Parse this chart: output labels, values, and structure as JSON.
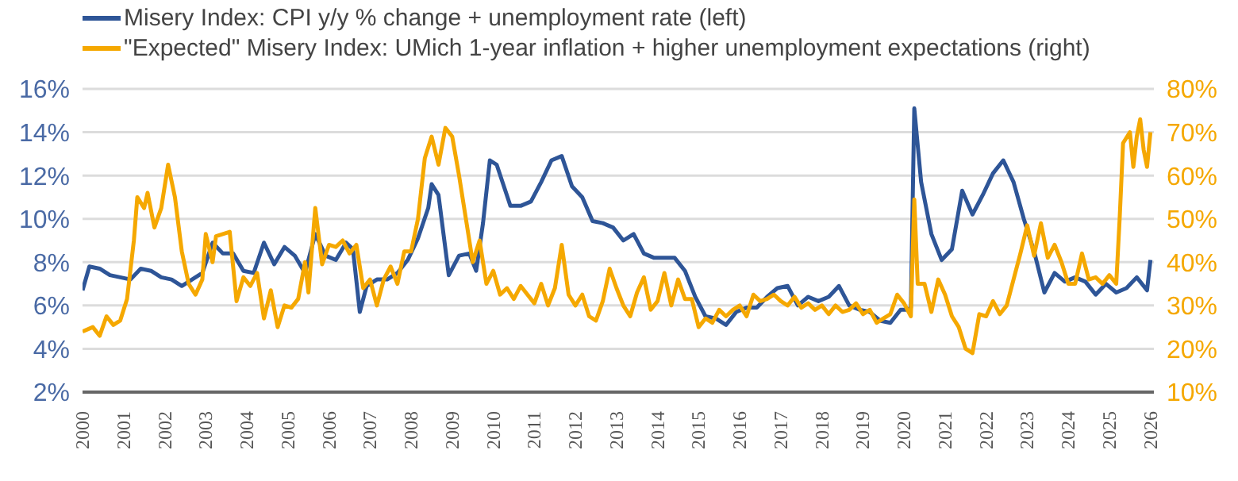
{
  "chart_data": {
    "type": "line",
    "xlim": [
      "2000",
      "2026-02"
    ],
    "xticks": [
      "2000",
      "2001",
      "2002",
      "2003",
      "2004",
      "2005",
      "2006",
      "2007",
      "2008",
      "2009",
      "2010",
      "2011",
      "2012",
      "2013",
      "2014",
      "2015",
      "2016",
      "2017",
      "2018",
      "2019",
      "2020",
      "2021",
      "2022",
      "2023",
      "2024",
      "2025",
      "2026"
    ],
    "ylim": [
      2,
      16
    ],
    "yticks": [
      {
        "value": 2,
        "label": "2%"
      },
      {
        "value": 4,
        "label": "4%"
      },
      {
        "value": 6,
        "label": "6%"
      },
      {
        "value": 8,
        "label": "8%"
      },
      {
        "value": 10,
        "label": "10%"
      },
      {
        "value": 12,
        "label": "12%"
      },
      {
        "value": 14,
        "label": "14%"
      },
      {
        "value": 16,
        "label": "16%"
      }
    ],
    "y2lim": [
      10,
      80
    ],
    "y2ticks": [
      {
        "value": 10,
        "label": "10%"
      },
      {
        "value": 20,
        "label": "20%"
      },
      {
        "value": 30,
        "label": "30%"
      },
      {
        "value": 40,
        "label": "40%"
      },
      {
        "value": 50,
        "label": "50%"
      },
      {
        "value": 60,
        "label": "60%"
      },
      {
        "value": 70,
        "label": "70%"
      },
      {
        "value": 80,
        "label": "80%"
      }
    ],
    "grid": "y",
    "legend": "top left",
    "line_style": "solid",
    "marker": "none",
    "series": [
      {
        "name": "Misery Index: CPI y/y % change + unemployment rate (left)",
        "color": "#2e5597",
        "x": [
          "2000-01",
          "2000-03",
          "2000-06",
          "2000-09",
          "2000-12",
          "2001-03",
          "2001-06",
          "2001-09",
          "2001-12",
          "2002-03",
          "2002-06",
          "2002-09",
          "2002-12",
          "2003-03",
          "2003-06",
          "2003-09",
          "2003-12",
          "2004-03",
          "2004-06",
          "2004-09",
          "2004-12",
          "2005-03",
          "2005-06",
          "2005-09",
          "2005-12",
          "2006-03",
          "2006-06",
          "2006-08",
          "2006-10",
          "2006-12",
          "2007-03",
          "2007-06",
          "2007-09",
          "2007-12",
          "2008-03",
          "2008-06",
          "2008-07",
          "2008-09",
          "2008-12",
          "2009-03",
          "2009-06",
          "2009-08",
          "2009-10",
          "2009-12",
          "2010-02",
          "2010-06",
          "2010-09",
          "2010-12",
          "2011-03",
          "2011-06",
          "2011-09",
          "2011-12",
          "2012-03",
          "2012-06",
          "2012-09",
          "2012-12",
          "2013-03",
          "2013-06",
          "2013-09",
          "2013-12",
          "2014-03",
          "2014-06",
          "2014-09",
          "2014-12",
          "2015-03",
          "2015-06",
          "2015-09",
          "2015-12",
          "2016-03",
          "2016-06",
          "2016-09",
          "2016-12",
          "2017-03",
          "2017-06",
          "2017-09",
          "2017-12",
          "2018-03",
          "2018-06",
          "2018-09",
          "2018-12",
          "2019-03",
          "2019-06",
          "2019-09",
          "2019-12",
          "2020-02",
          "2020-03",
          "2020-04",
          "2020-05",
          "2020-06",
          "2020-09",
          "2020-12",
          "2021-03",
          "2021-06",
          "2021-09",
          "2021-12",
          "2022-03",
          "2022-06",
          "2022-09",
          "2022-12",
          "2023-03",
          "2023-06",
          "2023-09",
          "2023-12",
          "2024-03",
          "2024-06",
          "2024-09",
          "2024-12",
          "2025-03",
          "2025-06",
          "2025-09",
          "2025-12",
          "2026-01"
        ],
        "values": [
          6.7,
          7.8,
          7.7,
          7.4,
          7.3,
          7.2,
          7.7,
          7.6,
          7.3,
          7.2,
          6.9,
          7.2,
          7.5,
          8.9,
          8.4,
          8.4,
          7.6,
          7.5,
          8.9,
          7.9,
          8.7,
          8.3,
          7.5,
          9.3,
          8.3,
          8.1,
          8.9,
          8.6,
          5.7,
          6.9,
          7.2,
          7.2,
          7.5,
          8.1,
          9.1,
          10.5,
          11.6,
          11.1,
          7.4,
          8.3,
          8.4,
          7.6,
          9.8,
          12.7,
          12.5,
          10.6,
          10.6,
          10.8,
          11.7,
          12.7,
          12.9,
          11.5,
          11.0,
          9.9,
          9.8,
          9.6,
          9.0,
          9.3,
          8.4,
          8.2,
          8.2,
          8.2,
          7.6,
          6.4,
          5.5,
          5.4,
          5.1,
          5.7,
          5.9,
          5.9,
          6.4,
          6.8,
          6.9,
          6.0,
          6.4,
          6.2,
          6.4,
          6.9,
          6.0,
          5.8,
          5.7,
          5.3,
          5.2,
          5.8,
          5.8,
          5.9,
          15.1,
          13.4,
          11.7,
          9.3,
          8.1,
          8.6,
          11.3,
          10.2,
          11.1,
          12.1,
          12.7,
          11.7,
          10.0,
          8.5,
          6.6,
          7.5,
          7.1,
          7.3,
          7.1,
          6.5,
          7.0,
          6.6,
          6.8,
          7.3,
          6.7,
          8.1
        ]
      },
      {
        "name": "\"Expected\" Misery Index: UMich 1-year inflation + higher unemployment expectations (right)",
        "color": "#f5a800",
        "axis": "y2",
        "x": [
          "2000-01",
          "2000-04",
          "2000-06",
          "2000-08",
          "2000-10",
          "2000-12",
          "2001-02",
          "2001-04",
          "2001-05",
          "2001-07",
          "2001-08",
          "2001-10",
          "2001-12",
          "2002-02",
          "2002-04",
          "2002-06",
          "2002-08",
          "2002-10",
          "2002-12",
          "2003-01",
          "2003-03",
          "2003-04",
          "2003-06",
          "2003-08",
          "2003-10",
          "2003-12",
          "2004-02",
          "2004-04",
          "2004-06",
          "2004-08",
          "2004-10",
          "2004-12",
          "2005-02",
          "2005-04",
          "2005-06",
          "2005-07",
          "2005-09",
          "2005-11",
          "2006-01",
          "2006-03",
          "2006-05",
          "2006-07",
          "2006-09",
          "2006-11",
          "2007-01",
          "2007-03",
          "2007-05",
          "2007-07",
          "2007-09",
          "2007-11",
          "2008-01",
          "2008-03",
          "2008-05",
          "2008-07",
          "2008-09",
          "2008-11",
          "2009-01",
          "2009-03",
          "2009-05",
          "2009-07",
          "2009-09",
          "2009-11",
          "2010-01",
          "2010-03",
          "2010-05",
          "2010-07",
          "2010-09",
          "2010-11",
          "2011-01",
          "2011-03",
          "2011-05",
          "2011-07",
          "2011-09",
          "2011-11",
          "2012-01",
          "2012-03",
          "2012-05",
          "2012-07",
          "2012-09",
          "2012-11",
          "2013-01",
          "2013-03",
          "2013-05",
          "2013-07",
          "2013-09",
          "2013-11",
          "2014-01",
          "2014-03",
          "2014-05",
          "2014-07",
          "2014-09",
          "2014-11",
          "2015-01",
          "2015-03",
          "2015-05",
          "2015-07",
          "2015-09",
          "2015-11",
          "2016-01",
          "2016-03",
          "2016-05",
          "2016-07",
          "2016-09",
          "2016-11",
          "2017-01",
          "2017-03",
          "2017-05",
          "2017-07",
          "2017-09",
          "2017-11",
          "2018-01",
          "2018-03",
          "2018-05",
          "2018-07",
          "2018-09",
          "2018-11",
          "2019-01",
          "2019-03",
          "2019-05",
          "2019-07",
          "2019-09",
          "2019-11",
          "2020-01",
          "2020-03",
          "2020-04",
          "2020-05",
          "2020-07",
          "2020-09",
          "2020-11",
          "2021-01",
          "2021-03",
          "2021-05",
          "2021-07",
          "2021-09",
          "2021-11",
          "2022-01",
          "2022-03",
          "2022-05",
          "2022-07",
          "2022-09",
          "2022-11",
          "2023-01",
          "2023-03",
          "2023-05",
          "2023-07",
          "2023-09",
          "2023-11",
          "2024-01",
          "2024-03",
          "2024-05",
          "2024-07",
          "2024-09",
          "2024-11",
          "2025-01",
          "2025-03",
          "2025-04",
          "2025-05",
          "2025-07",
          "2025-08",
          "2025-09",
          "2025-10",
          "2025-11",
          "2025-12",
          "2026-01"
        ],
        "values": [
          24,
          25,
          23,
          27.5,
          25.5,
          26.5,
          31.5,
          45,
          55,
          52.5,
          56,
          48,
          52.5,
          62.5,
          55,
          42.5,
          35,
          32.5,
          36,
          46.5,
          40,
          46,
          46.5,
          47,
          31,
          36.5,
          34.5,
          37.5,
          27,
          33.5,
          25,
          30,
          29.5,
          31.5,
          40,
          33,
          52.5,
          39.5,
          44,
          43.5,
          45,
          42,
          44,
          34,
          36,
          30,
          36,
          39,
          35,
          42.5,
          42.5,
          50,
          64,
          69,
          62.5,
          71,
          69,
          60,
          50,
          40,
          45,
          35,
          38,
          32.5,
          34,
          31.5,
          34.5,
          32.5,
          30.5,
          35,
          30,
          34,
          44,
          32.5,
          30,
          32.5,
          27.5,
          26.5,
          31,
          38.5,
          34,
          30,
          27.5,
          33,
          36.5,
          29,
          31,
          37.5,
          30,
          36,
          31.5,
          31.5,
          25,
          27,
          26,
          29,
          27.5,
          29,
          30,
          27.5,
          32.5,
          31,
          31.5,
          32.5,
          31,
          30,
          32,
          29.5,
          30.5,
          29,
          30,
          28,
          30,
          28.5,
          29,
          30.5,
          28,
          29,
          26,
          27,
          28,
          32.5,
          30.5,
          27.5,
          54.5,
          35,
          35,
          28.5,
          36,
          32.5,
          27.5,
          25,
          20,
          19,
          28,
          27.5,
          31,
          28,
          30,
          36,
          42,
          48.5,
          41.5,
          49,
          41,
          44,
          40,
          35,
          35,
          42,
          36,
          36.5,
          35,
          37,
          35,
          50,
          67.5,
          70,
          62,
          69,
          73,
          66,
          62,
          70
        ]
      }
    ]
  }
}
